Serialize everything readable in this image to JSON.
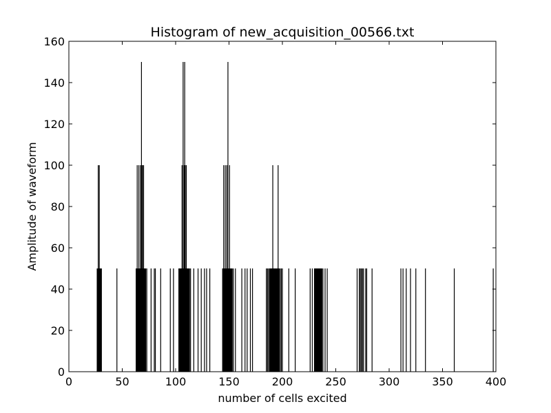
{
  "chart_data": {
    "type": "bar",
    "title": "Histogram of new_acquisition_00566.txt",
    "xlabel": "number of cells excited",
    "ylabel": "Amplitude of waveform",
    "xlim": [
      0,
      400
    ],
    "ylim": [
      0,
      160
    ],
    "xticks": [
      0,
      50,
      100,
      150,
      200,
      250,
      300,
      350,
      400
    ],
    "yticks": [
      0,
      20,
      40,
      60,
      80,
      100,
      120,
      140,
      160
    ],
    "grid": false,
    "bar_color": "#000000",
    "x": [
      26.5,
      27,
      27.5,
      28,
      28.5,
      29,
      29.5,
      30,
      30.5,
      45,
      63,
      63.5,
      64,
      64.5,
      65,
      65.5,
      66,
      66.5,
      67,
      67.5,
      68,
      68.5,
      69,
      69.5,
      70,
      70.5,
      71,
      71.5,
      72,
      73,
      77,
      80,
      81,
      86,
      95,
      98,
      103,
      103.5,
      104,
      104.5,
      105,
      105.5,
      106,
      106.5,
      107,
      107.5,
      108,
      108.5,
      109,
      109.5,
      110,
      110.5,
      111,
      111.5,
      112,
      112.5,
      113,
      114,
      117,
      121,
      124,
      127,
      129,
      132,
      144,
      144.5,
      145,
      145.5,
      146,
      146.5,
      147,
      147.5,
      148,
      148.5,
      149,
      149.5,
      150,
      150.5,
      151,
      151.5,
      152,
      152.5,
      153,
      154,
      156,
      162,
      165,
      167,
      170,
      172,
      185,
      186,
      187,
      188,
      188.5,
      189,
      189.5,
      190,
      190.5,
      191,
      191.5,
      192,
      192.5,
      193,
      193.5,
      194,
      194.5,
      195,
      195.5,
      196,
      196.5,
      197,
      198,
      199,
      200,
      206,
      212,
      226,
      228,
      230,
      230.5,
      231,
      231.5,
      232,
      232.5,
      233,
      233.5,
      234,
      234.5,
      235,
      235.5,
      236,
      236.5,
      237,
      238,
      240,
      242,
      270,
      272,
      273,
      274,
      275,
      276,
      278,
      279,
      284,
      311,
      313,
      316,
      320,
      325,
      334,
      361,
      397.5
    ],
    "values": [
      50,
      50,
      100,
      50,
      100,
      50,
      50,
      50,
      50,
      50,
      50,
      50,
      100,
      50,
      50,
      100,
      50,
      50,
      100,
      50,
      150,
      100,
      100,
      50,
      100,
      50,
      50,
      50,
      50,
      50,
      50,
      50,
      50,
      50,
      50,
      50,
      50,
      50,
      50,
      50,
      50,
      50,
      100,
      50,
      150,
      50,
      100,
      150,
      100,
      50,
      100,
      50,
      50,
      50,
      50,
      50,
      50,
      50,
      50,
      50,
      50,
      50,
      50,
      50,
      50,
      50,
      100,
      50,
      50,
      100,
      50,
      50,
      100,
      50,
      150,
      50,
      50,
      100,
      50,
      50,
      50,
      50,
      50,
      50,
      50,
      50,
      50,
      50,
      50,
      50,
      50,
      50,
      50,
      50,
      50,
      50,
      50,
      50,
      50,
      100,
      50,
      50,
      50,
      50,
      50,
      50,
      50,
      50,
      50,
      100,
      50,
      50,
      50,
      50,
      50,
      50,
      50,
      50,
      50,
      50,
      50,
      50,
      50,
      50,
      50,
      50,
      50,
      50,
      50,
      50,
      50,
      50,
      50,
      50,
      50,
      50,
      50,
      50,
      50,
      50,
      50,
      50,
      50,
      50,
      50,
      50,
      50,
      50,
      50,
      50,
      50,
      50,
      50,
      50
    ]
  }
}
